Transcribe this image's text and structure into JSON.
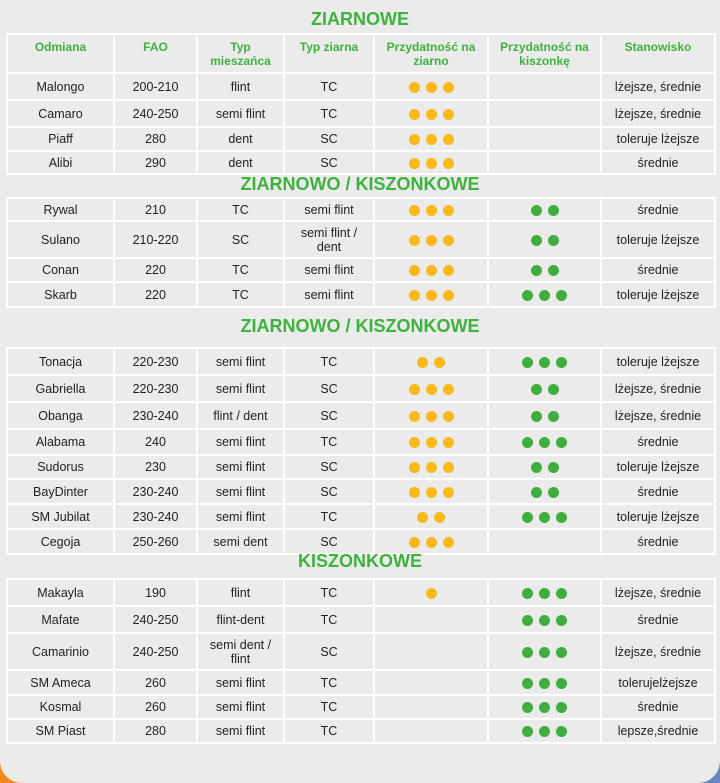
{
  "colors": {
    "title": "#3db33d",
    "grain_dot": "#f9b81b",
    "silage_dot": "#3fae3f",
    "background": "#ebebeb"
  },
  "headers": [
    "Odmiana",
    "FAO",
    "Typ mieszańca",
    "Typ ziarna",
    "Przydatność na ziarno",
    "Przydatność na kiszonkę",
    "Stanowisko"
  ],
  "sections": [
    {
      "title": "ZIARNOWE",
      "rows": [
        {
          "name": "Malongo",
          "fao": "200-210",
          "hybrid": "flint",
          "grain": "TC",
          "grain_score": 3,
          "silage_score": 0,
          "site": "lżejsze, średnie"
        },
        {
          "name": "Camaro",
          "fao": "240-250",
          "hybrid": "semi flint",
          "grain": "TC",
          "grain_score": 3,
          "silage_score": 0,
          "site": "lżejsze, średnie"
        },
        {
          "name": "Piaff",
          "fao": "280",
          "hybrid": "dent",
          "grain": "SC",
          "grain_score": 3,
          "silage_score": 0,
          "site": "toleruje lżejsze"
        },
        {
          "name": "Alibi",
          "fao": "290",
          "hybrid": "dent",
          "grain": "SC",
          "grain_score": 3,
          "silage_score": 0,
          "site": "średnie"
        }
      ]
    },
    {
      "title": "ZIARNOWO / KISZONKOWE",
      "rows": [
        {
          "name": "Rywal",
          "fao": "210",
          "hybrid": "TC",
          "grain": "semi flint",
          "grain_score": 3,
          "silage_score": 2,
          "site": "średnie"
        },
        {
          "name": "Sulano",
          "fao": "210-220",
          "hybrid": "SC",
          "grain": "semi flint / dent",
          "grain_score": 3,
          "silage_score": 2,
          "site": "toleruje lżejsze"
        },
        {
          "name": "Conan",
          "fao": "220",
          "hybrid": "TC",
          "grain": "semi flint",
          "grain_score": 3,
          "silage_score": 2,
          "site": "średnie"
        },
        {
          "name": "Skarb",
          "fao": "220",
          "hybrid": "TC",
          "grain": "semi flint",
          "grain_score": 3,
          "silage_score": 3,
          "site": "toleruje lżejsze"
        }
      ]
    },
    {
      "title": "ZIARNOWO / KISZONKOWE",
      "rows": [
        {
          "name": "Tonacja",
          "fao": "220-230",
          "hybrid": "semi flint",
          "grain": "TC",
          "grain_score": 2,
          "silage_score": 3,
          "site": "toleruje lżejsze"
        },
        {
          "name": "Gabriella",
          "fao": "220-230",
          "hybrid": "semi flint",
          "grain": "SC",
          "grain_score": 3,
          "silage_score": 2,
          "site": "lżejsze, średnie"
        },
        {
          "name": "Obanga",
          "fao": "230-240",
          "hybrid": "flint / dent",
          "grain": "SC",
          "grain_score": 3,
          "silage_score": 2,
          "site": "lżejsze, średnie"
        },
        {
          "name": "Alabama",
          "fao": "240",
          "hybrid": "semi flint",
          "grain": "TC",
          "grain_score": 3,
          "silage_score": 3,
          "site": "średnie"
        },
        {
          "name": "Sudorus",
          "fao": "230",
          "hybrid": "semi flint",
          "grain": "SC",
          "grain_score": 3,
          "silage_score": 2,
          "site": "toleruje lżejsze"
        },
        {
          "name": "BayDinter",
          "fao": "230-240",
          "hybrid": "semi flint",
          "grain": "SC",
          "grain_score": 3,
          "silage_score": 2,
          "site": "średnie"
        },
        {
          "name": "SM Jubilat",
          "fao": "230-240",
          "hybrid": "semi flint",
          "grain": "TC",
          "grain_score": 2,
          "silage_score": 3,
          "site": "toleruje lżejsze"
        },
        {
          "name": "Cegoja",
          "fao": "250-260",
          "hybrid": "semi dent",
          "grain": "SC",
          "grain_score": 3,
          "silage_score": 0,
          "site": "średnie"
        }
      ]
    },
    {
      "title": "KISZONKOWE",
      "rows": [
        {
          "name": "Makayla",
          "fao": "190",
          "hybrid": "flint",
          "grain": "TC",
          "grain_score": 1,
          "silage_score": 3,
          "site": "lżejsze, średnie"
        },
        {
          "name": "Mafate",
          "fao": "240-250",
          "hybrid": "flint-dent",
          "grain": "TC",
          "grain_score": 0,
          "silage_score": 3,
          "site": "średnie"
        },
        {
          "name": "Camarinio",
          "fao": "240-250",
          "hybrid": "semi dent / flint",
          "grain": "SC",
          "grain_score": 0,
          "silage_score": 3,
          "site": "lżejsze, średnie"
        },
        {
          "name": "SM Ameca",
          "fao": "260",
          "hybrid": "semi flint",
          "grain": "TC",
          "grain_score": 0,
          "silage_score": 3,
          "site": "tolerujelżejsze"
        },
        {
          "name": "Kosmal",
          "fao": "260",
          "hybrid": "semi flint",
          "grain": "TC",
          "grain_score": 0,
          "silage_score": 3,
          "site": "średnie"
        },
        {
          "name": "SM Piast",
          "fao": "280",
          "hybrid": "semi flint",
          "grain": "TC",
          "grain_score": 0,
          "silage_score": 3,
          "site": "lepsze,średnie"
        }
      ]
    }
  ]
}
